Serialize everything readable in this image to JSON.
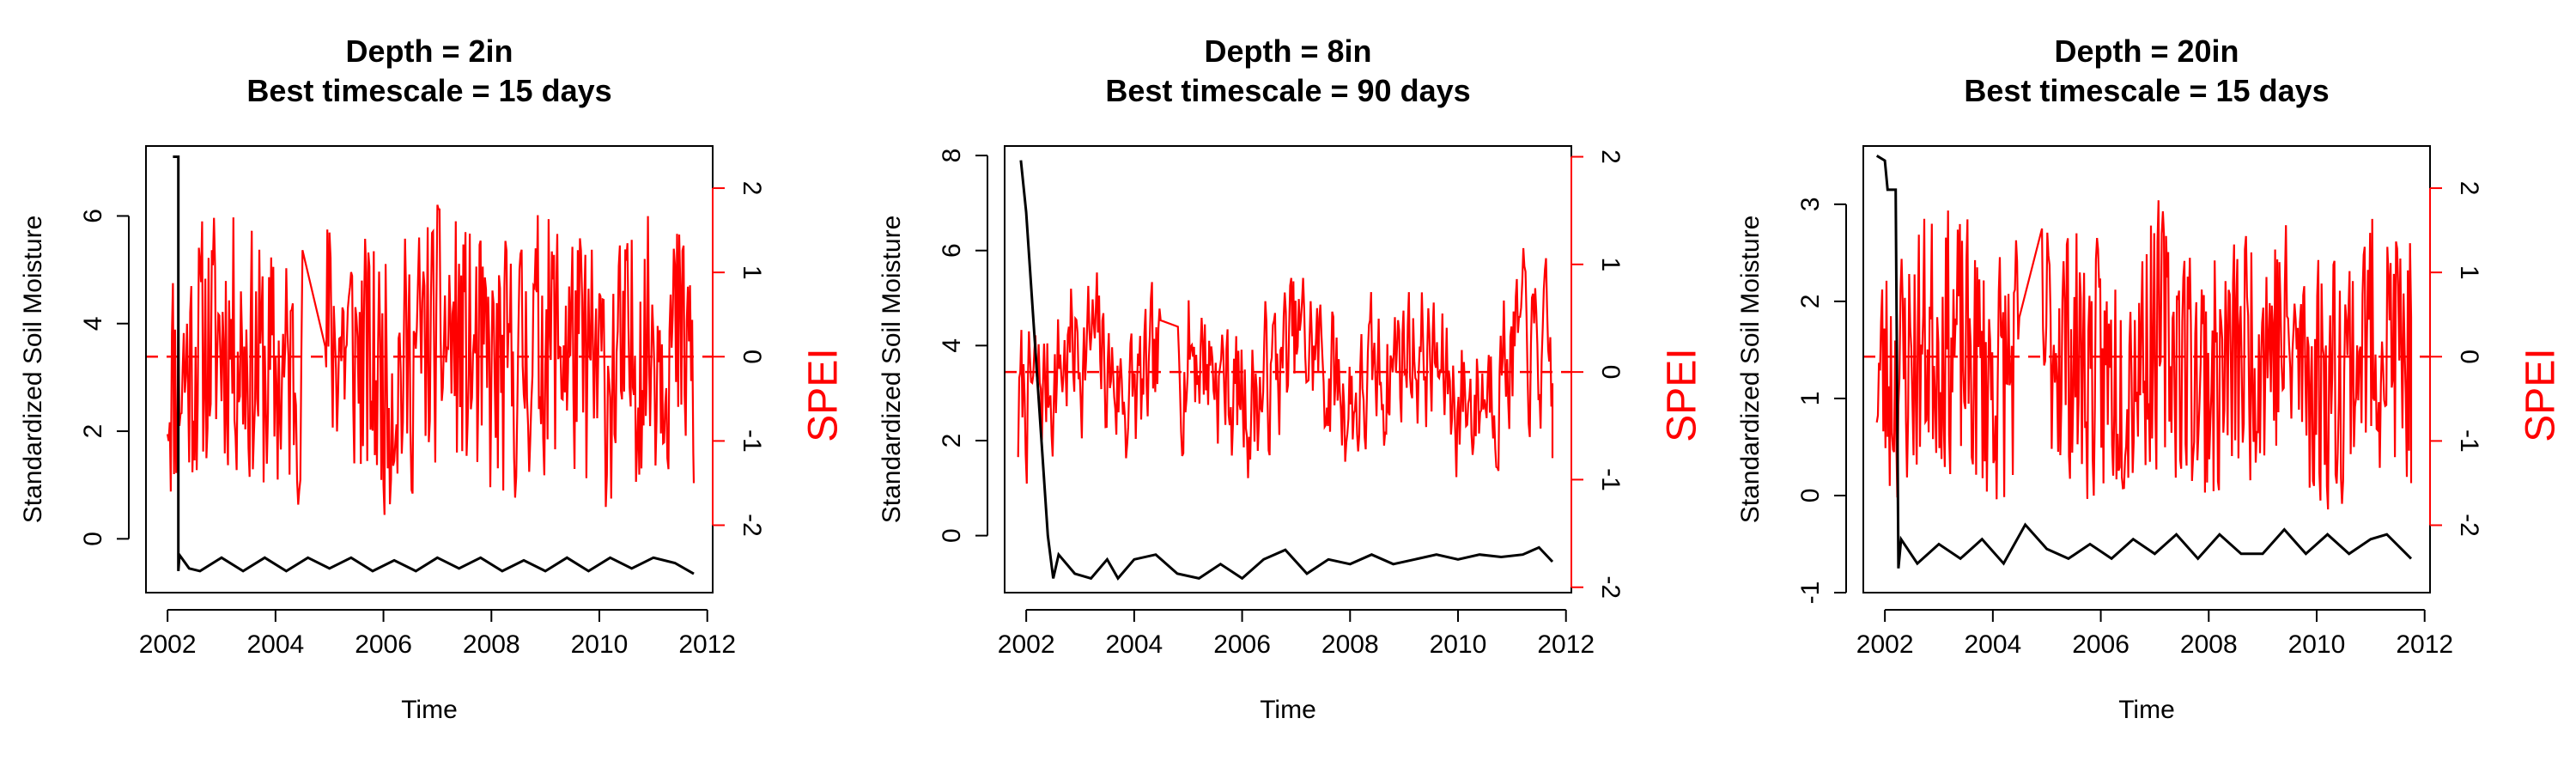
{
  "chart_data": [
    {
      "type": "line",
      "title": "Depth = 2in",
      "subtitle": "Best timescale = 15 days",
      "xlabel": "Time",
      "ylabel_left": "Standardized Soil Moisture",
      "ylabel_right": "SPEI",
      "xlim": [
        2001.6,
        2012.1
      ],
      "ylim_left": [
        -1.0,
        7.3
      ],
      "ylim_right": [
        -2.8,
        2.5
      ],
      "xticks": [
        2002,
        2004,
        2006,
        2008,
        2010,
        2012
      ],
      "xtick_labels": [
        "2002",
        "2004",
        "2006",
        "2008",
        "2010",
        "2012"
      ],
      "yticks_left": [
        0,
        2,
        4,
        6
      ],
      "ytick_labels_left": [
        "0",
        "2",
        "4",
        "6"
      ],
      "yticks_right": [
        -2,
        -1,
        0,
        1,
        2
      ],
      "ytick_labels_right": [
        "-2",
        "-1",
        "0",
        "1",
        "2"
      ],
      "reference_line_right": 0,
      "series": [
        {
          "axis": "left",
          "color": "#000000",
          "x": [
            2002.1,
            2002.12,
            2002.2,
            2002.2,
            2002.22,
            2002.4,
            2002.6,
            2003.0,
            2003.4,
            2003.8,
            2004.2,
            2004.6,
            2005.0,
            2005.4,
            2005.8,
            2006.2,
            2006.6,
            2007.0,
            2007.4,
            2007.8,
            2008.2,
            2008.6,
            2009.0,
            2009.4,
            2009.8,
            2010.2,
            2010.6,
            2011.0,
            2011.4,
            2011.75
          ],
          "y": [
            7.1,
            7.1,
            7.1,
            -0.6,
            -0.3,
            -0.55,
            -0.6,
            -0.35,
            -0.6,
            -0.35,
            -0.6,
            -0.35,
            -0.55,
            -0.35,
            -0.6,
            -0.4,
            -0.6,
            -0.35,
            -0.55,
            -0.35,
            -0.6,
            -0.4,
            -0.6,
            -0.35,
            -0.6,
            -0.35,
            -0.55,
            -0.35,
            -0.45,
            -0.65
          ]
        },
        {
          "axis": "right",
          "color": "#ff0000",
          "seed": 11,
          "amp": 1.7,
          "smooth": 0.1,
          "step": 0.02,
          "x_range": [
            2002.0,
            2011.75
          ],
          "gap": [
            2004.5,
            2004.9
          ],
          "start": 1.0,
          "end": -1.5
        }
      ]
    },
    {
      "type": "line",
      "title": "Depth = 8in",
      "subtitle": "Best timescale = 90 days",
      "xlabel": "Time",
      "ylabel_left": "Standardized Soil Moisture",
      "ylabel_right": "SPEI",
      "xlim": [
        2001.6,
        2012.1
      ],
      "ylim_left": [
        -1.2,
        8.2
      ],
      "ylim_right": [
        -2.05,
        2.1
      ],
      "xticks": [
        2002,
        2004,
        2006,
        2008,
        2010,
        2012
      ],
      "xtick_labels": [
        "2002",
        "2004",
        "2006",
        "2008",
        "2010",
        "2012"
      ],
      "yticks_left": [
        0,
        2,
        4,
        6,
        8
      ],
      "ytick_labels_left": [
        "0",
        "2",
        "4",
        "6",
        "8"
      ],
      "yticks_right": [
        -2,
        -1,
        0,
        1,
        2
      ],
      "ytick_labels_right": [
        "-2",
        "-1",
        "0",
        "1",
        "2"
      ],
      "reference_line_right": 0,
      "series": [
        {
          "axis": "left",
          "color": "#000000",
          "x": [
            2001.9,
            2002.0,
            2002.4,
            2002.5,
            2002.6,
            2002.9,
            2003.2,
            2003.5,
            2003.7,
            2004.0,
            2004.4,
            2004.8,
            2005.2,
            2005.6,
            2006.0,
            2006.4,
            2006.8,
            2007.2,
            2007.6,
            2008.0,
            2008.4,
            2008.8,
            2009.2,
            2009.6,
            2010.0,
            2010.4,
            2010.8,
            2011.2,
            2011.5,
            2011.75
          ],
          "y": [
            7.9,
            6.8,
            0.0,
            -0.9,
            -0.4,
            -0.8,
            -0.9,
            -0.5,
            -0.9,
            -0.5,
            -0.4,
            -0.8,
            -0.9,
            -0.6,
            -0.9,
            -0.5,
            -0.3,
            -0.8,
            -0.5,
            -0.6,
            -0.4,
            -0.6,
            -0.5,
            -0.4,
            -0.5,
            -0.4,
            -0.45,
            -0.4,
            -0.25,
            -0.55
          ]
        },
        {
          "axis": "right",
          "color": "#ff0000",
          "seed": 7,
          "amp": 1.3,
          "smooth": 0.55,
          "step": 0.02,
          "x_range": [
            2001.85,
            2011.75
          ],
          "gap": [
            2004.5,
            2004.8
          ],
          "start": -0.7,
          "end": -0.8
        }
      ]
    },
    {
      "type": "line",
      "title": "Depth = 20in",
      "subtitle": "Best timescale = 15 days",
      "xlabel": "Time",
      "ylabel_left": "Standardized Soil Moisture",
      "ylabel_right": "SPEI",
      "xlim": [
        2001.6,
        2012.1
      ],
      "ylim_left": [
        -1.0,
        3.6
      ],
      "ylim_right": [
        -2.8,
        2.5
      ],
      "xticks": [
        2002,
        2004,
        2006,
        2008,
        2010,
        2012
      ],
      "xtick_labels": [
        "2002",
        "2004",
        "2006",
        "2008",
        "2010",
        "2012"
      ],
      "yticks_left": [
        -1,
        0,
        1,
        2,
        3
      ],
      "ytick_labels_left": [
        "-1",
        "0",
        "1",
        "2",
        "3"
      ],
      "yticks_right": [
        -2,
        -1,
        0,
        1,
        2
      ],
      "ytick_labels_right": [
        "-2",
        "-1",
        "0",
        "1",
        "2"
      ],
      "reference_line_right": 0,
      "series": [
        {
          "axis": "left",
          "color": "#000000",
          "x": [
            2001.85,
            2002.0,
            2002.05,
            2002.2,
            2002.25,
            2002.3,
            2002.6,
            2003.0,
            2003.4,
            2003.8,
            2004.2,
            2004.6,
            2005.0,
            2005.4,
            2005.8,
            2006.2,
            2006.6,
            2007.0,
            2007.4,
            2007.8,
            2008.2,
            2008.6,
            2009.0,
            2009.4,
            2009.8,
            2010.2,
            2010.6,
            2011.0,
            2011.3,
            2011.75
          ],
          "y": [
            3.5,
            3.45,
            3.15,
            3.15,
            -0.75,
            -0.45,
            -0.7,
            -0.5,
            -0.65,
            -0.45,
            -0.7,
            -0.3,
            -0.55,
            -0.65,
            -0.5,
            -0.65,
            -0.45,
            -0.6,
            -0.4,
            -0.65,
            -0.4,
            -0.6,
            -0.6,
            -0.35,
            -0.6,
            -0.4,
            -0.6,
            -0.45,
            -0.4,
            -0.65
          ]
        },
        {
          "axis": "right",
          "color": "#ff0000",
          "seed": 23,
          "amp": 1.7,
          "smooth": 0.1,
          "step": 0.02,
          "x_range": [
            2001.85,
            2011.75
          ],
          "gap": [
            2004.5,
            2004.9
          ],
          "start": 2.0,
          "end": -1.5
        }
      ]
    }
  ]
}
